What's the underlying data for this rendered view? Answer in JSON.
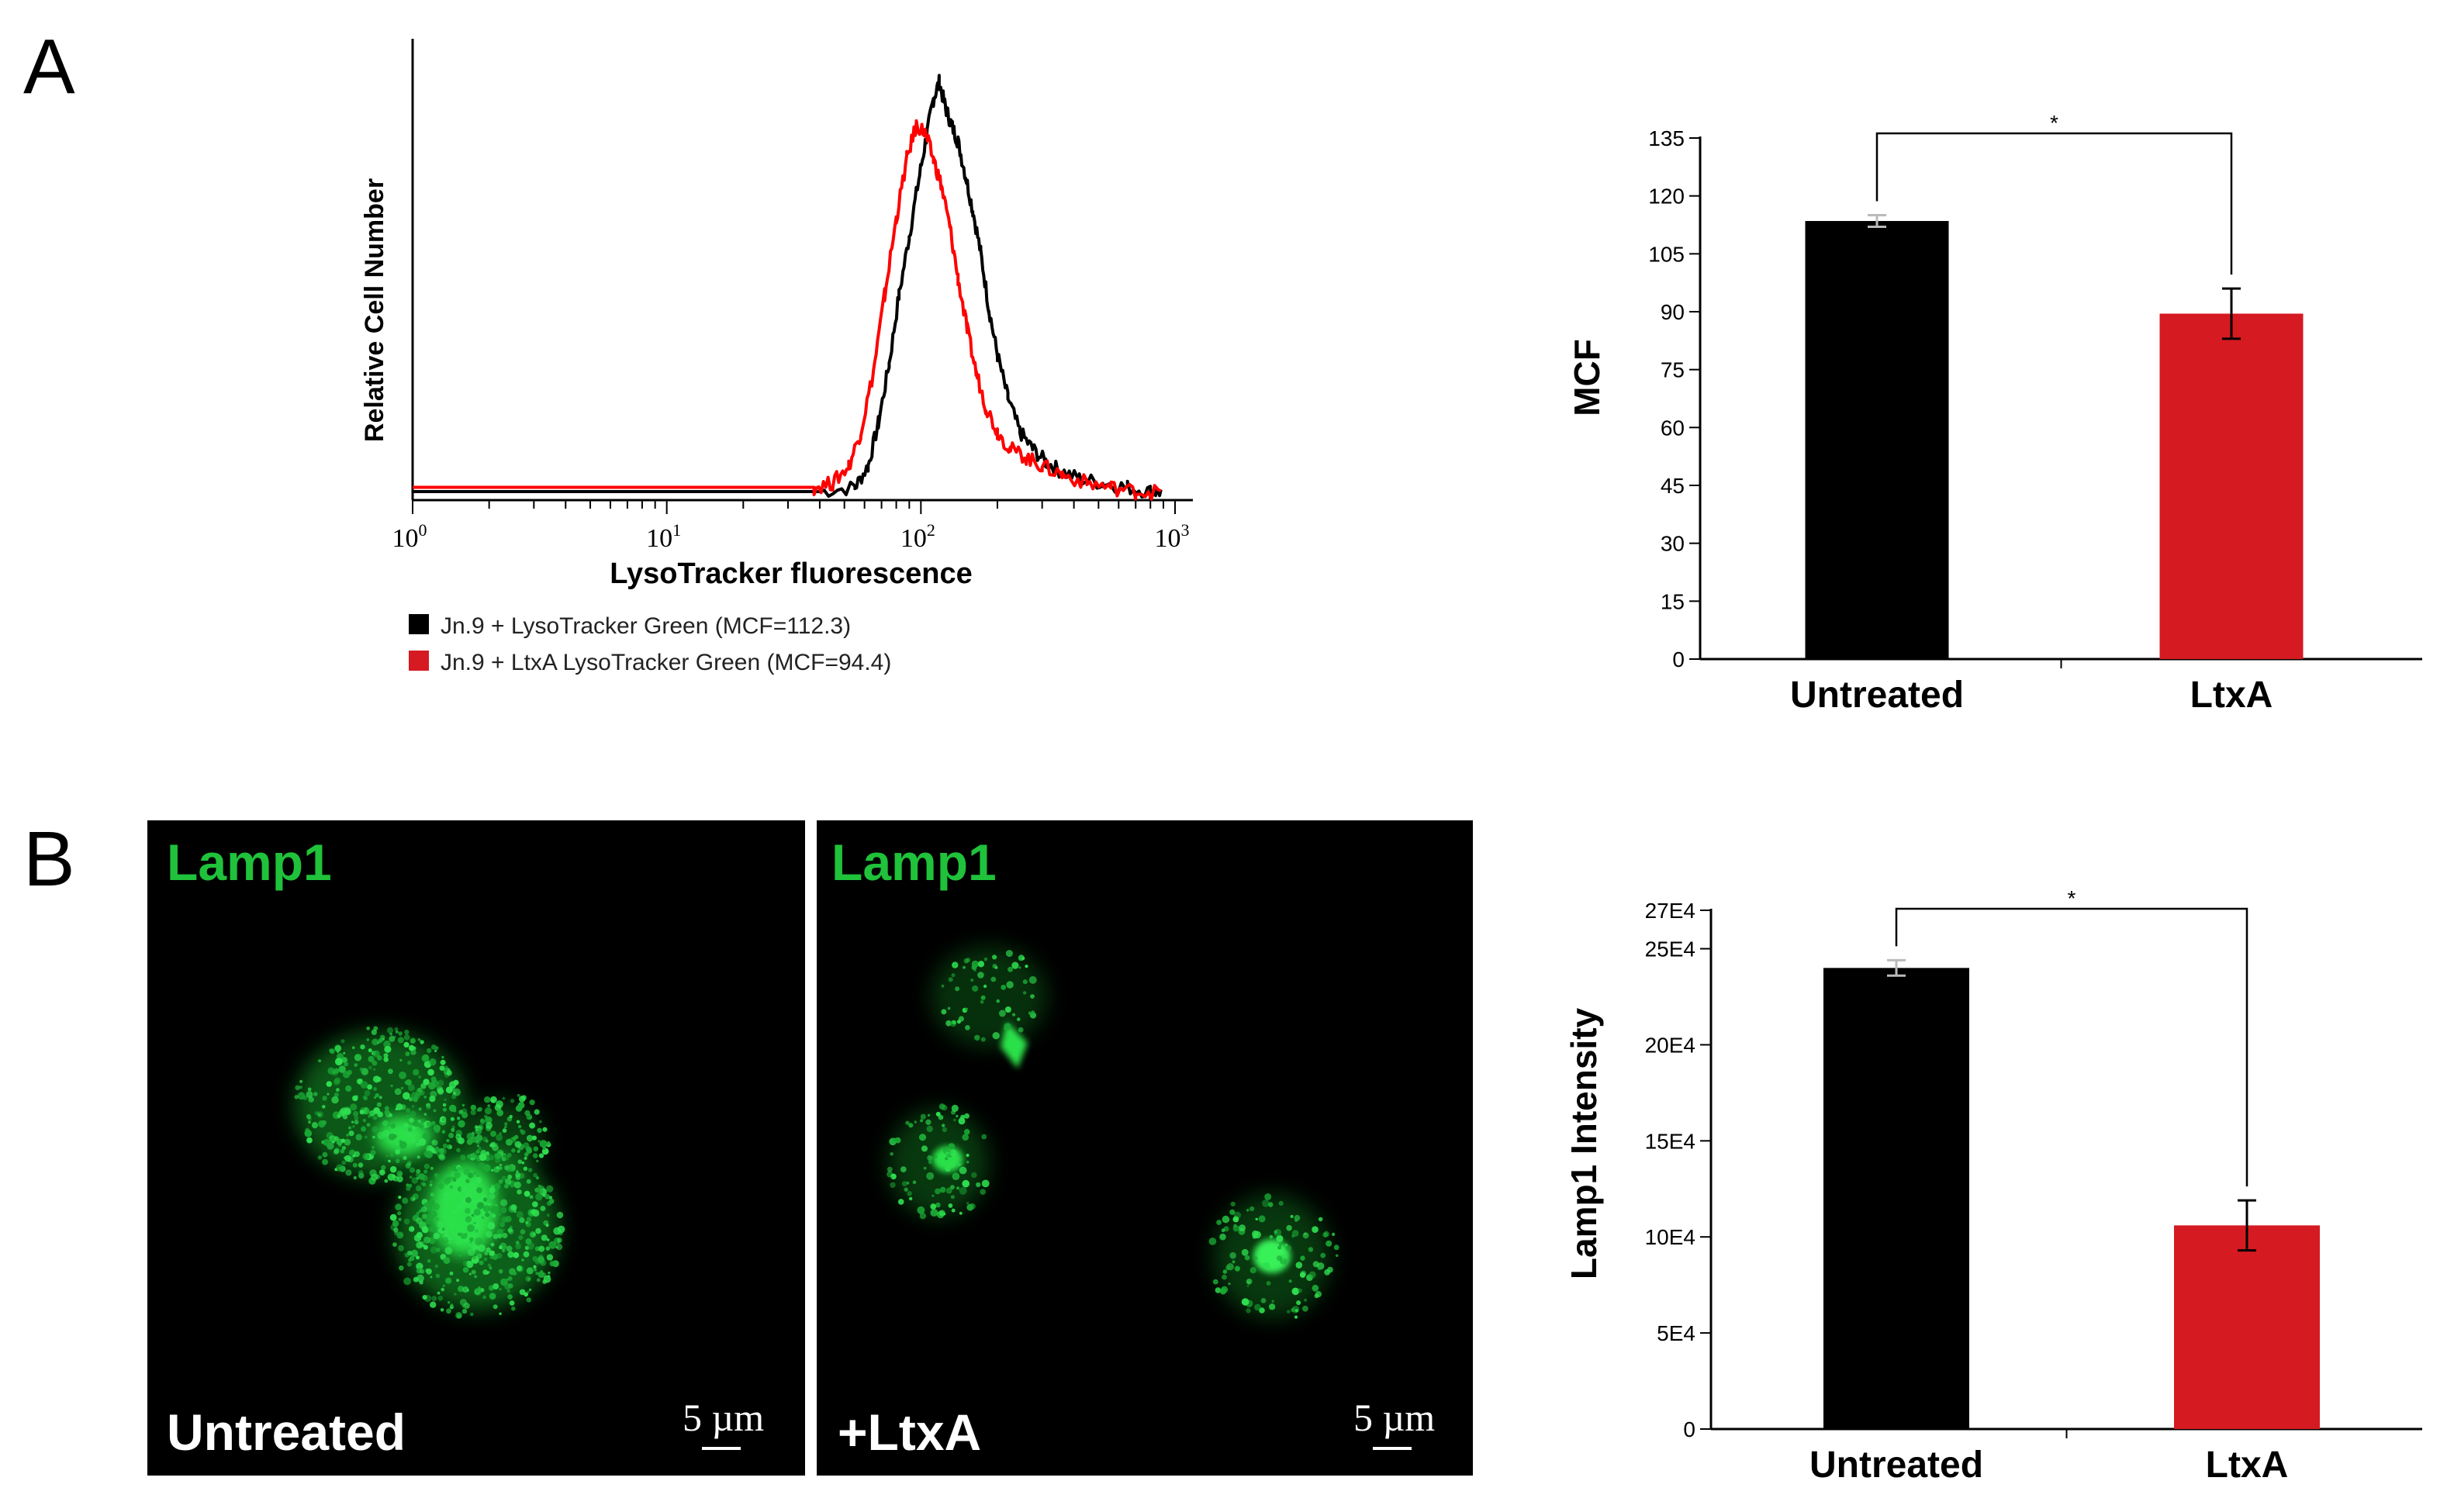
{
  "panel_a": {
    "letter": "A",
    "histogram": {
      "type": "line",
      "ylabel": "Relative Cell Number",
      "xlabel": "LysoTracker fluorescence",
      "x_scale": "log",
      "xlim": [
        1,
        1000
      ],
      "x_ticks": [
        {
          "value": 1,
          "base": "10",
          "exp": "0"
        },
        {
          "value": 10,
          "base": "10",
          "exp": "1"
        },
        {
          "value": 100,
          "base": "10",
          "exp": "2"
        },
        {
          "value": 1000,
          "base": "10",
          "exp": "3"
        }
      ],
      "ylim": [
        0,
        100
      ],
      "series": [
        {
          "name": "Jn.9 + LysoTracker Green (MCF=112.3)",
          "color": "#000000",
          "points": [
            [
              1,
              2
            ],
            [
              40,
              2
            ],
            [
              55,
              3
            ],
            [
              62,
              8
            ],
            [
              68,
              18
            ],
            [
              75,
              32
            ],
            [
              82,
              48
            ],
            [
              90,
              62
            ],
            [
              98,
              75
            ],
            [
              105,
              85
            ],
            [
              112,
              94
            ],
            [
              118,
              98
            ],
            [
              125,
              92
            ],
            [
              132,
              88
            ],
            [
              140,
              84
            ],
            [
              150,
              76
            ],
            [
              160,
              68
            ],
            [
              172,
              58
            ],
            [
              185,
              45
            ],
            [
              200,
              34
            ],
            [
              220,
              24
            ],
            [
              245,
              16
            ],
            [
              275,
              12
            ],
            [
              310,
              9
            ],
            [
              350,
              7
            ],
            [
              420,
              5
            ],
            [
              520,
              4
            ],
            [
              650,
              3
            ],
            [
              800,
              2
            ],
            [
              880,
              2
            ]
          ]
        },
        {
          "name": "Jn.9 + LtxA LysoTracker Green (MCF=94.4)",
          "color": "#ff0000",
          "points": [
            [
              1,
              3
            ],
            [
              38,
              3
            ],
            [
              45,
              4
            ],
            [
              52,
              8
            ],
            [
              58,
              16
            ],
            [
              65,
              30
            ],
            [
              72,
              48
            ],
            [
              80,
              66
            ],
            [
              88,
              80
            ],
            [
              96,
              88
            ],
            [
              104,
              86
            ],
            [
              112,
              80
            ],
            [
              120,
              74
            ],
            [
              130,
              64
            ],
            [
              140,
              52
            ],
            [
              152,
              40
            ],
            [
              165,
              30
            ],
            [
              180,
              22
            ],
            [
              200,
              16
            ],
            [
              225,
              12
            ],
            [
              260,
              10
            ],
            [
              300,
              8
            ],
            [
              360,
              6
            ],
            [
              450,
              4
            ],
            [
              560,
              3
            ],
            [
              700,
              2
            ],
            [
              880,
              2
            ]
          ]
        }
      ]
    },
    "bar": {
      "type": "bar",
      "ylabel": "MCF",
      "categories": [
        "Untreated",
        "LtxA"
      ],
      "values": [
        113.5,
        89.5
      ],
      "errors": [
        1.5,
        6.5
      ],
      "colors": [
        "#000000",
        "#d61a22"
      ],
      "ylim": [
        0,
        135
      ],
      "yticks": [
        "0",
        "15",
        "30",
        "45",
        "60",
        "75",
        "90",
        "105",
        "120",
        "135"
      ],
      "significance": "*"
    }
  },
  "panel_b": {
    "letter": "B",
    "images": [
      {
        "stain": "Lamp1",
        "condition": "Untreated",
        "scale": "5 µm"
      },
      {
        "stain": "Lamp1",
        "condition": "+LtxA",
        "scale": "5 µm"
      }
    ],
    "bar": {
      "type": "bar",
      "ylabel": "Lamp1 Intensity",
      "categories": [
        "Untreated",
        "LtxA"
      ],
      "values": [
        240000,
        106000
      ],
      "errors": [
        4000,
        13000
      ],
      "colors": [
        "#000000",
        "#d61a22"
      ],
      "ylim": [
        0,
        270000
      ],
      "yticks": [
        {
          "value": 0,
          "label": "0"
        },
        {
          "value": 50000,
          "label": "5E4"
        },
        {
          "value": 100000,
          "label": "10E4"
        },
        {
          "value": 150000,
          "label": "15E4"
        },
        {
          "value": 200000,
          "label": "20E4"
        },
        {
          "value": 250000,
          "label": "25E4"
        },
        {
          "value": 270000,
          "label": "27E4"
        }
      ],
      "significance": "*"
    }
  },
  "colors": {
    "lamp1_green": "#1fc23a",
    "untreated_bar": "#000000",
    "ltxa_bar": "#d61a22"
  }
}
